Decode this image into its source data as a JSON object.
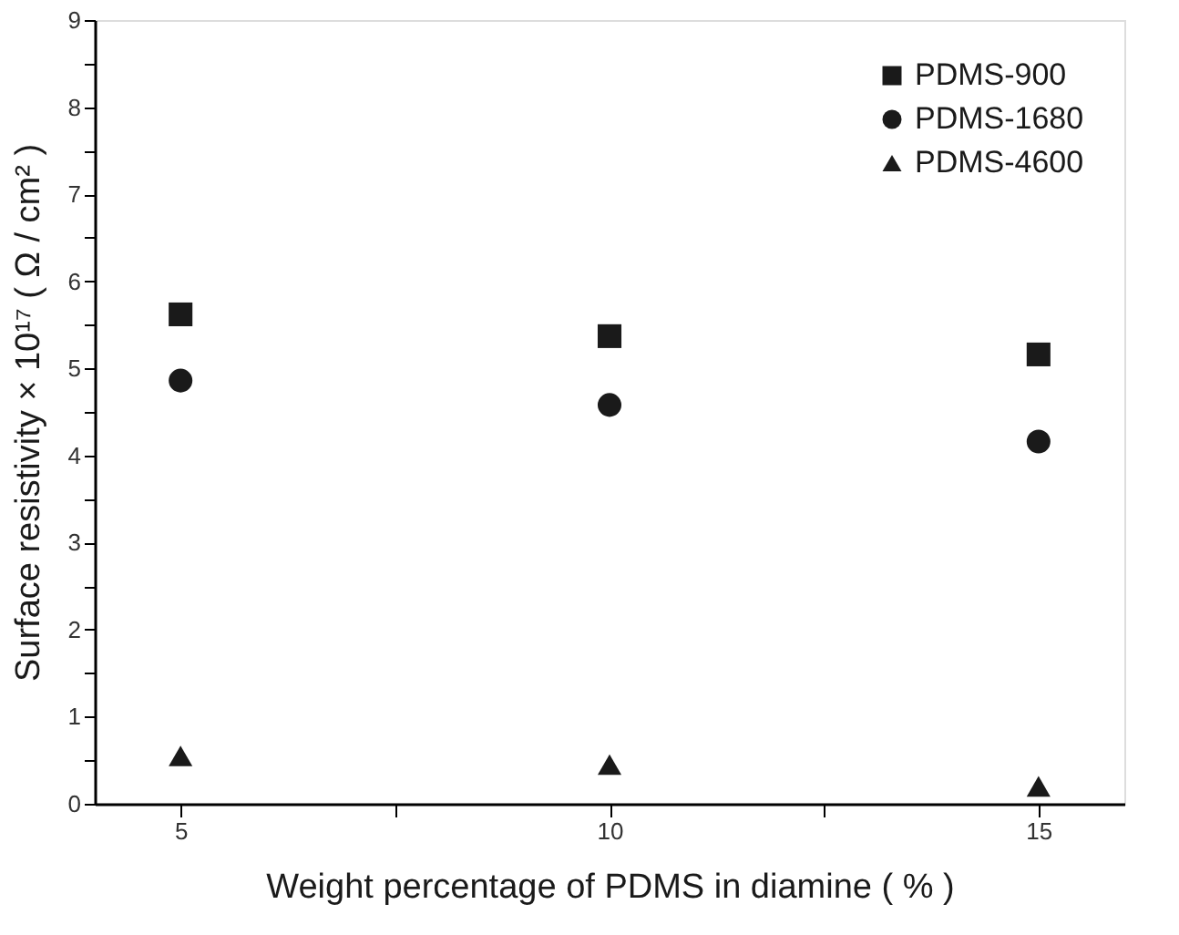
{
  "chart_data": {
    "type": "scatter",
    "xlabel": "Weight percentage of PDMS in diamine ( % )",
    "ylabel": "Surface resistivity × 10¹⁷ ( Ω / cm² )",
    "xlim": [
      4,
      16
    ],
    "xticks": [
      5,
      {
        "value": 7.5,
        "label": null
      },
      10,
      {
        "value": 12.5,
        "label": null
      },
      15
    ],
    "ylim": [
      0,
      9
    ],
    "yticks": [
      0,
      {
        "value": 0.5,
        "label": null
      },
      1,
      {
        "value": 1.5,
        "label": null
      },
      2,
      {
        "value": 2.5,
        "label": null
      },
      3,
      {
        "value": 3.5,
        "label": null
      },
      4,
      {
        "value": 4.5,
        "label": null
      },
      5,
      {
        "value": 5.5,
        "label": null
      },
      6,
      {
        "value": 6.5,
        "label": null
      },
      7,
      {
        "value": 7.5,
        "label": null
      },
      8,
      {
        "value": 8.5,
        "label": null
      },
      9
    ],
    "grid": false,
    "legend": "top right",
    "x": [
      5,
      10,
      15
    ],
    "series": [
      {
        "name": "PDMS-900",
        "color": "#1a1a1a",
        "marker": "square",
        "values": [
          5.62,
          5.37,
          5.16
        ]
      },
      {
        "name": "PDMS-1680",
        "color": "#1a1a1a",
        "marker": "circle",
        "values": [
          4.86,
          4.58,
          4.16
        ]
      },
      {
        "name": "PDMS-4600",
        "color": "#1a1a1a",
        "marker": "triangle",
        "values": [
          0.55,
          0.45,
          0.2
        ]
      }
    ]
  }
}
